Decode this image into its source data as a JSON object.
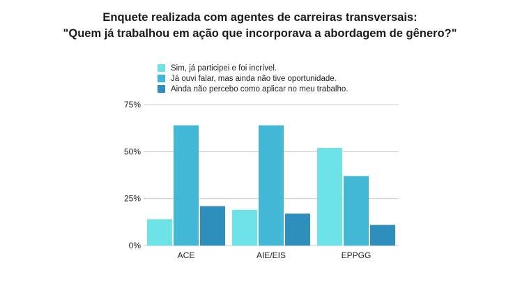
{
  "chart_data": {
    "type": "bar",
    "title_line1": "Enquete realizada com agentes de carreiras transversais:",
    "title_line2": "\"Quem já trabalhou em ação que incorporava a abordagem de gênero?\"",
    "categories": [
      "ACE",
      "AIE/EIS",
      "EPPGG"
    ],
    "series": [
      {
        "name": "Sim, já participei e foi incrível.",
        "color": "#6de3e8",
        "values": [
          14,
          19,
          52
        ]
      },
      {
        "name": "Já ouvi falar, mas ainda não tive oportunidade.",
        "color": "#43b8d6",
        "values": [
          64,
          64,
          37
        ]
      },
      {
        "name": "Ainda não percebo como aplicar no meu trabalho.",
        "color": "#2e8fbd",
        "values": [
          21,
          17,
          11
        ]
      }
    ],
    "yticks": [
      "0%",
      "25%",
      "50%",
      "75%"
    ],
    "ytick_values": [
      0,
      25,
      50,
      75
    ],
    "ylim": [
      0,
      75
    ],
    "xlabel": "",
    "ylabel": "",
    "legend_position": "top"
  }
}
